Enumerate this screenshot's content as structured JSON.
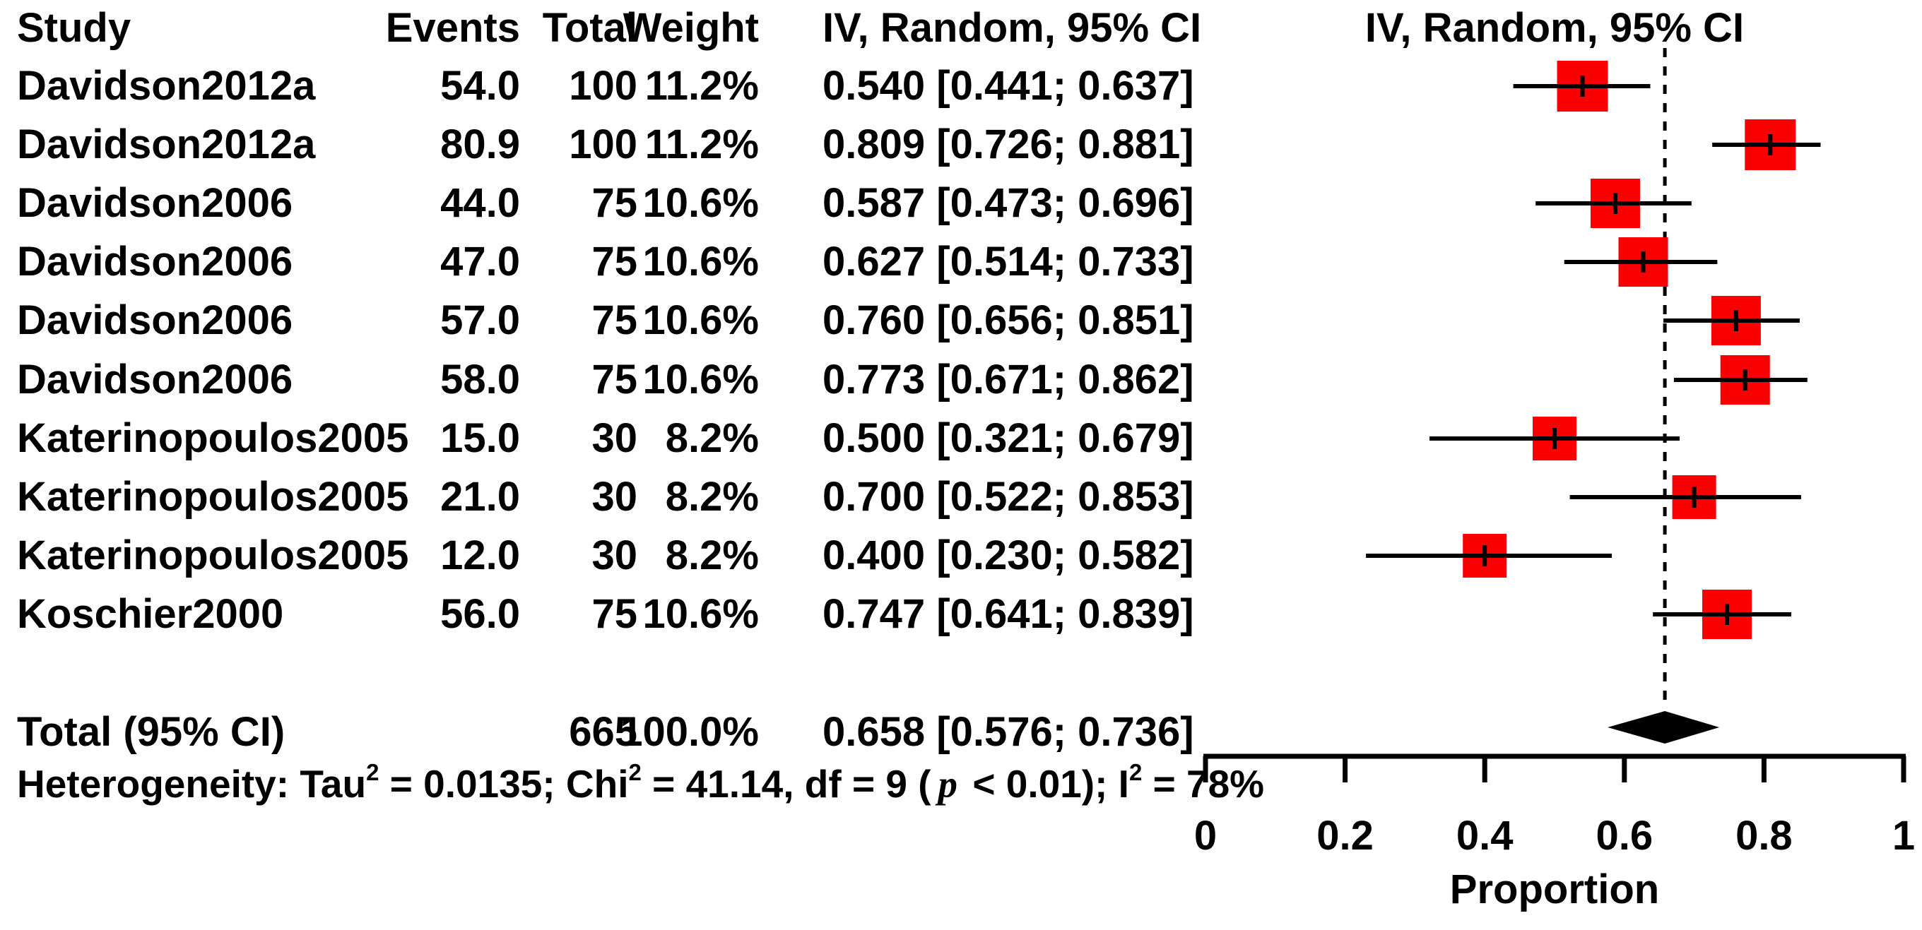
{
  "chart_data": {
    "type": "forest",
    "columns": {
      "study": "Study",
      "events": "Events",
      "total": "Total",
      "weight": "Weight",
      "ci": "IV, Random, 95% CI"
    },
    "plot_header": "IV, Random, 95% CI",
    "studies": [
      {
        "study": "Davidson2012a",
        "events": "54.0",
        "total": "100",
        "weight": "11.2%",
        "estimate": 0.54,
        "ci_lower": 0.441,
        "ci_upper": 0.637,
        "ci_label": "0.540 [0.441; 0.637]"
      },
      {
        "study": "Davidson2012a",
        "events": "80.9",
        "total": "100",
        "weight": "11.2%",
        "estimate": 0.809,
        "ci_lower": 0.726,
        "ci_upper": 0.881,
        "ci_label": "0.809 [0.726; 0.881]"
      },
      {
        "study": "Davidson2006",
        "events": "44.0",
        "total": "75",
        "weight": "10.6%",
        "estimate": 0.587,
        "ci_lower": 0.473,
        "ci_upper": 0.696,
        "ci_label": "0.587 [0.473; 0.696]"
      },
      {
        "study": "Davidson2006",
        "events": "47.0",
        "total": "75",
        "weight": "10.6%",
        "estimate": 0.627,
        "ci_lower": 0.514,
        "ci_upper": 0.733,
        "ci_label": "0.627 [0.514; 0.733]"
      },
      {
        "study": "Davidson2006",
        "events": "57.0",
        "total": "75",
        "weight": "10.6%",
        "estimate": 0.76,
        "ci_lower": 0.656,
        "ci_upper": 0.851,
        "ci_label": "0.760 [0.656; 0.851]"
      },
      {
        "study": "Davidson2006",
        "events": "58.0",
        "total": "75",
        "weight": "10.6%",
        "estimate": 0.773,
        "ci_lower": 0.671,
        "ci_upper": 0.862,
        "ci_label": "0.773 [0.671; 0.862]"
      },
      {
        "study": "Katerinopoulos2005",
        "events": "15.0",
        "total": "30",
        "weight": "8.2%",
        "estimate": 0.5,
        "ci_lower": 0.321,
        "ci_upper": 0.679,
        "ci_label": "0.500 [0.321; 0.679]"
      },
      {
        "study": "Katerinopoulos2005",
        "events": "21.0",
        "total": "30",
        "weight": "8.2%",
        "estimate": 0.7,
        "ci_lower": 0.522,
        "ci_upper": 0.853,
        "ci_label": "0.700 [0.522; 0.853]"
      },
      {
        "study": "Katerinopoulos2005",
        "events": "12.0",
        "total": "30",
        "weight": "8.2%",
        "estimate": 0.4,
        "ci_lower": 0.23,
        "ci_upper": 0.582,
        "ci_label": "0.400 [0.230; 0.582]"
      },
      {
        "study": "Koschier2000",
        "events": "56.0",
        "total": "75",
        "weight": "10.6%",
        "estimate": 0.747,
        "ci_lower": 0.641,
        "ci_upper": 0.839,
        "ci_label": "0.747 [0.641; 0.839]"
      }
    ],
    "total": {
      "label": "Total (95% CI)",
      "total": "665",
      "weight": "100.0%",
      "estimate": 0.658,
      "ci_lower": 0.576,
      "ci_upper": 0.736,
      "ci_label": "0.658 [0.576; 0.736]"
    },
    "heterogeneity": {
      "parts": [
        {
          "text": "Heterogeneity: Tau"
        },
        {
          "sup": "2"
        },
        {
          "text": " = 0.0135; Chi"
        },
        {
          "sup": "2"
        },
        {
          "text": " = 41.14, df = 9 ("
        },
        {
          "italic": "p"
        },
        {
          "text": " < 0.01); I"
        },
        {
          "sup": "2"
        },
        {
          "text": " = 78%"
        }
      ]
    },
    "axis": {
      "xlim": [
        0,
        1
      ],
      "ticks": [
        0,
        0.2,
        0.4,
        0.6,
        0.8,
        1
      ],
      "tick_labels": [
        "0",
        "0.2",
        "0.4",
        "0.6",
        "0.8",
        "1"
      ],
      "xlabel": "Proportion",
      "reference_line": 0.658
    },
    "colors": {
      "marker": "#FB0000",
      "line": "#000000",
      "diamond": "#000000"
    }
  }
}
